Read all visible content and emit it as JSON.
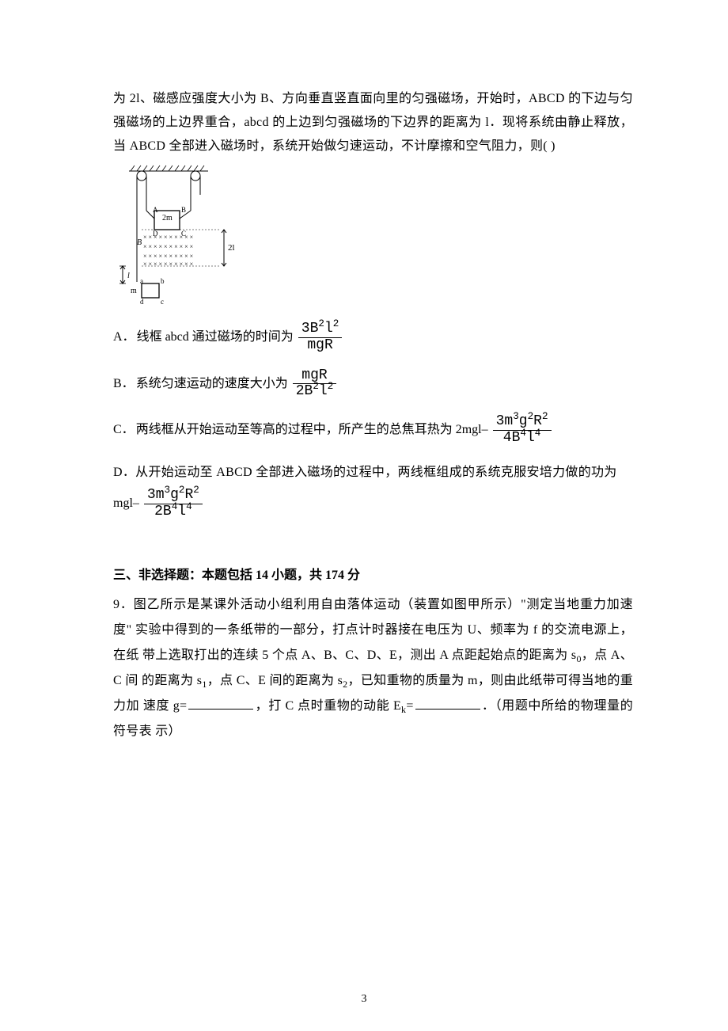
{
  "header_paragraph": {
    "line1": "为 2l、磁感应强度大小为 B、方向垂直竖直面向里的匀强磁场，开始时，ABCD 的下边与匀",
    "line2": "强磁场的上边界重合，abcd 的上边到匀强磁场的下边界的距离为 l．现将系统由静止释放，",
    "line3": "当 ABCD 全部进入磁场时，系统开始做匀速运动，不计摩擦和空气阻力，则(        )"
  },
  "diagram": {
    "labels": {
      "A": "A",
      "B": "B",
      "C": "C",
      "D": "D",
      "a": "a",
      "b": "b",
      "c": "c",
      "d": "d",
      "twom": "2m",
      "m": "m",
      "twol": "2l",
      "l": "l",
      "B_field": "B"
    },
    "stroke": "#000000",
    "cross_color": "#000000"
  },
  "options": {
    "A": {
      "label": "A．",
      "text": "线框 abcd 通过磁场的时间为",
      "frac": {
        "num": "3B<sup>2</sup>l<sup>2</sup>",
        "den": "mgR"
      }
    },
    "B": {
      "label": "B．",
      "text": "系统匀速运动的速度大小为",
      "frac": {
        "num": "mgR",
        "den": "2B<sup>2</sup>l<sup>2</sup>"
      }
    },
    "C": {
      "label": "C．",
      "text": "两线框从开始运动至等高的过程中，所产生的总焦耳热为 2mgl– ",
      "frac": {
        "num": "3m<sup>3</sup>g<sup>2</sup>R<sup>2</sup>",
        "den": "4B<sup>4</sup>l<sup>4</sup>"
      }
    },
    "D": {
      "label": "D．",
      "text": "从开始运动至 ABCD 全部进入磁场的过程中，两线框组成的系统克服安培力做的功为",
      "tail_prefix": "mgl– ",
      "frac": {
        "num": "3m<sup>3</sup>g<sup>2</sup>R<sup>2</sup>",
        "den": "2B<sup>4</sup>l<sup>4</sup>"
      }
    }
  },
  "section_title": "三、非选择题：本题包括 14 小题，共 174 分",
  "q9": {
    "intro_1": "9．图乙所示是某课外活动小组利用自由落体运动（装置如图甲所示）\"测定当地重力加速度\"",
    "intro_2": "实验中得到的一条纸带的一部分，打点计时器接在电压为 U、频率为 f 的交流电源上，在纸",
    "intro_3": "带上选取打出的连续 5 个点 A、B、C、D、E，测出 A 点距起始点的距离为 s",
    "intro_3_tail": "，点 A、C 间",
    "intro_4a": "的距离为 s",
    "intro_4b": "，点 C、E 间的距离为 s",
    "intro_4c": "，已知重物的质量为 m，则由此纸带可得当地的重力加",
    "intro_5a": "速度 g=",
    "intro_5b": "，打 C 点时重物的动能 E",
    "intro_5c": "=",
    "intro_5d": "．（用题中所给的物理量的符号表",
    "intro_6": "示）",
    "sub_s0": "0",
    "sub_s1": "1",
    "sub_s2": "2",
    "sub_k": "k"
  },
  "page_number": "3"
}
